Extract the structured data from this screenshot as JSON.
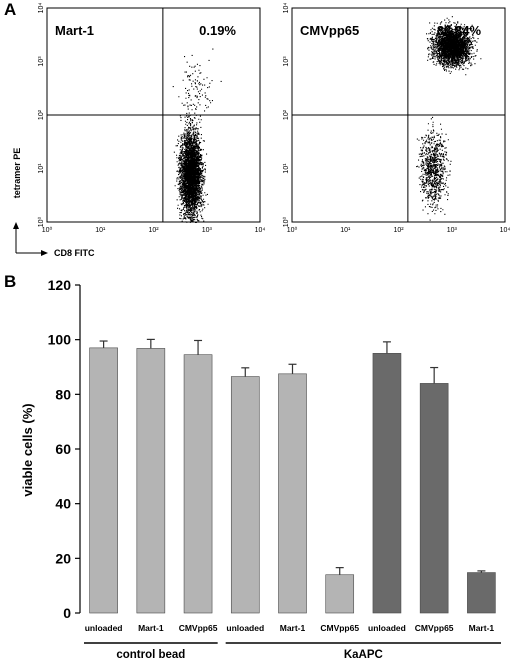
{
  "panel_a_letter": "A",
  "panel_b_letter": "B",
  "chart_data": [
    {
      "type": "scatter",
      "subtype": "flow-cytometry-dot-plot",
      "xlabel": "CD8 FITC",
      "ylabel": "tetramer PE",
      "x_scale": "log",
      "y_scale": "log",
      "xlim": [
        1,
        10000
      ],
      "ylim": [
        1,
        10000
      ],
      "x_ticks": [
        "10⁰",
        "10¹",
        "10²",
        "10³",
        "10⁴"
      ],
      "y_ticks": [
        "10⁰",
        "10¹",
        "10²",
        "10³",
        "10⁴"
      ],
      "quadrant_gate": {
        "x": 150,
        "y": 100
      },
      "plots": [
        {
          "label": "Mart-1",
          "upper_right_percent": "0.19%",
          "populations": [
            {
              "description": "main",
              "center_x": 500,
              "center_y": 8,
              "spread_log_x": 0.1,
              "spread_log_y": 0.4,
              "relative_density": 0.97
            },
            {
              "description": "sparse upper",
              "center_x": 600,
              "center_y": 300,
              "spread_log_x": 0.15,
              "spread_log_y": 0.3,
              "relative_density": 0.03
            }
          ]
        },
        {
          "label": "CMVpp65",
          "upper_right_percent": "88.84%",
          "populations": [
            {
              "description": "tetramer positive",
              "center_x": 1000,
              "center_y": 2000,
              "spread_log_x": 0.17,
              "spread_log_y": 0.17,
              "relative_density": 0.78
            },
            {
              "description": "tetramer negative",
              "center_x": 450,
              "center_y": 10,
              "spread_log_x": 0.12,
              "spread_log_y": 0.35,
              "relative_density": 0.22
            }
          ]
        }
      ]
    },
    {
      "type": "bar",
      "ylabel": "viable cells (%)",
      "ylim": [
        0,
        120
      ],
      "y_ticks": [
        0,
        20,
        40,
        60,
        80,
        100,
        120
      ],
      "categories": [
        "unloaded",
        "Mart-1",
        "CMVpp65",
        "unloaded",
        "Mart-1",
        "CMVpp65",
        "unloaded",
        "CMVpp65",
        "Mart-1"
      ],
      "values": [
        97,
        96.8,
        94.5,
        86.5,
        87.5,
        14,
        95,
        84,
        14.8
      ],
      "errors": [
        2.5,
        3.3,
        5.2,
        3.2,
        3.5,
        2.6,
        4.2,
        5.8,
        0.6
      ],
      "bar_tone": [
        "light",
        "light",
        "light",
        "light",
        "light",
        "light",
        "dark",
        "dark",
        "dark"
      ],
      "groups": [
        {
          "label": "control bead",
          "start": 0,
          "end": 2
        },
        {
          "label": "KaAPC",
          "start": 3,
          "end": 8
        }
      ],
      "colors": {
        "light": "#b4b4b4",
        "dark": "#6a6a6a"
      }
    }
  ]
}
